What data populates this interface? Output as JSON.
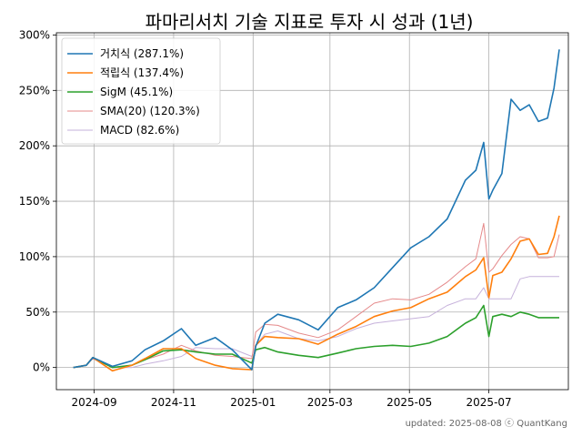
{
  "chart_data": {
    "type": "line",
    "title": "파마리서치 기술 지표로 투자 시 성과 (1년)",
    "xlabel": "",
    "ylabel": "",
    "x_tick_labels": [
      "2024-09",
      "2024-11",
      "2025-01",
      "2025-03",
      "2025-05",
      "2025-07"
    ],
    "y_tick_labels": [
      "0%",
      "50%",
      "100%",
      "150%",
      "200%",
      "250%",
      "300%"
    ],
    "ylim": [
      -20,
      302
    ],
    "xlim": [
      "2024-08-03",
      "2025-08-31"
    ],
    "grid": true,
    "legend_position": "top-left",
    "x": [
      "2024-08-16",
      "2024-08-26",
      "2024-08-31",
      "2024-09-15",
      "2024-09-30",
      "2024-10-10",
      "2024-10-24",
      "2024-11-07",
      "2024-11-18",
      "2024-12-03",
      "2024-12-16",
      "2024-12-31",
      "2025-01-03",
      "2025-01-10",
      "2025-01-20",
      "2025-02-05",
      "2025-02-20",
      "2025-03-07",
      "2025-03-21",
      "2025-04-04",
      "2025-04-18",
      "2025-05-02",
      "2025-05-16",
      "2025-05-30",
      "2025-06-13",
      "2025-06-21",
      "2025-06-27",
      "2025-07-01",
      "2025-07-04",
      "2025-07-11",
      "2025-07-18",
      "2025-07-25",
      "2025-08-01",
      "2025-08-08",
      "2025-08-15",
      "2025-08-20",
      "2025-08-24"
    ],
    "series": [
      {
        "name": "거치식 (287.1%)",
        "color": "#1f77b4",
        "values": [
          0,
          2,
          9,
          1,
          6,
          16,
          24,
          35,
          20,
          27,
          16,
          -2,
          19,
          40,
          48,
          43,
          34,
          54,
          61,
          72,
          90,
          108,
          118,
          134,
          169,
          178,
          203,
          152,
          160,
          175,
          242,
          232,
          237,
          222,
          225,
          252,
          287
        ]
      },
      {
        "name": "적립식 (137.4%)",
        "color": "#ff7f0e",
        "values": [
          0,
          2,
          9,
          -3,
          2,
          8,
          17,
          17,
          8,
          2,
          -1,
          -2,
          20,
          28,
          27,
          26,
          21,
          30,
          37,
          46,
          51,
          54,
          62,
          68,
          82,
          88,
          99,
          63,
          83,
          86,
          98,
          114,
          116,
          102,
          103,
          118,
          137
        ]
      },
      {
        "name": "SigM (45.1%)",
        "color": "#2ca02c",
        "values": [
          0,
          2,
          9,
          0,
          2,
          7,
          15,
          16,
          14,
          12,
          12,
          4,
          16,
          18,
          14,
          11,
          9,
          13,
          17,
          19,
          20,
          19,
          22,
          28,
          40,
          45,
          56,
          28,
          46,
          48,
          46,
          50,
          48,
          45,
          45,
          45,
          45
        ]
      },
      {
        "name": "SMA(20) (120.3%)",
        "color": "#e5898a",
        "values": [
          0,
          2,
          8,
          0,
          2,
          7,
          12,
          20,
          15,
          11,
          10,
          8,
          32,
          39,
          38,
          31,
          27,
          34,
          46,
          58,
          62,
          61,
          66,
          77,
          91,
          98,
          130,
          86,
          89,
          101,
          111,
          118,
          116,
          99,
          99,
          100,
          120
        ]
      },
      {
        "name": "MACD (82.6%)",
        "color": "#c6b1db",
        "values": [
          0,
          2,
          8,
          0,
          0,
          3,
          6,
          10,
          18,
          17,
          17,
          10,
          20,
          30,
          33,
          26,
          24,
          28,
          35,
          40,
          42,
          44,
          46,
          56,
          62,
          62,
          72,
          62,
          62,
          62,
          62,
          80,
          82,
          82,
          82,
          82,
          82
        ]
      }
    ]
  },
  "footer": "updated: 2025-08-08 ⓒ QuantKang"
}
